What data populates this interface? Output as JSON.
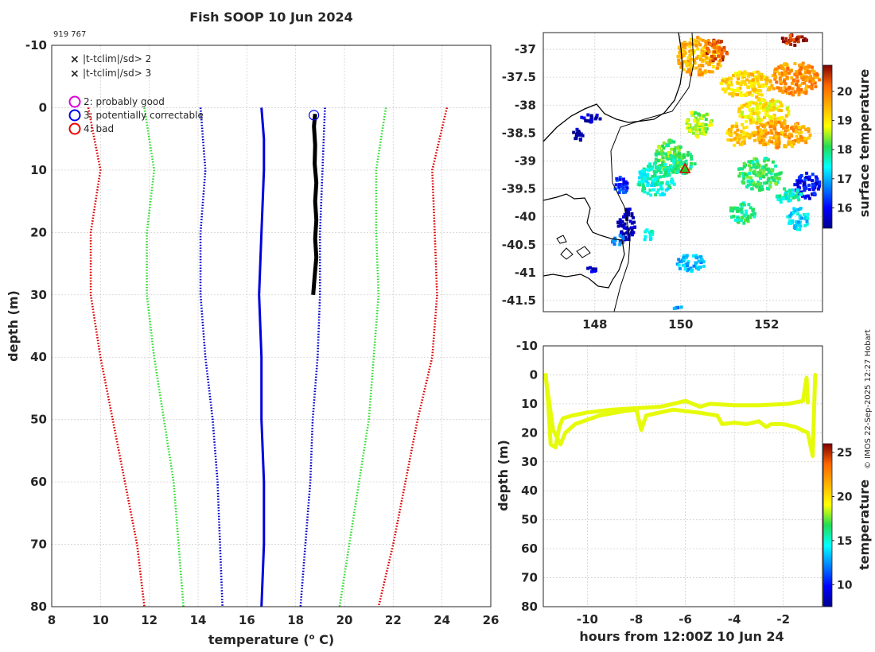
{
  "header": {
    "title": "Fish SOOP 10 Jun 2024",
    "cast_id": "919 767",
    "credit": "© IMOS 22-Sep-2025 12:27 Hobart"
  },
  "legend": {
    "cross_items": [
      {
        "label": "|t-tclim|/sd> 2",
        "color": "#22dd22"
      },
      {
        "label": "|t-tclim|/sd> 3",
        "color": "#dd0000"
      }
    ],
    "circle_items": [
      {
        "label": "2: probably good",
        "color": "#dd00dd"
      },
      {
        "label": "3: potentially correctable",
        "color": "#0000ee"
      },
      {
        "label": "4: bad",
        "color": "#ee0000"
      }
    ]
  },
  "chart_data": [
    {
      "type": "line",
      "name": "profile",
      "xlabel": "temperature (o C)",
      "ylabel": "depth (m)",
      "xlim": [
        8,
        26
      ],
      "ylim": [
        -10,
        80
      ],
      "x_ticks": [
        "8",
        "10",
        "12",
        "14",
        "16",
        "18",
        "20",
        "22",
        "24",
        "26"
      ],
      "y_ticks": [
        "-10",
        "0",
        "10",
        "20",
        "30",
        "40",
        "50",
        "60",
        "70",
        "80"
      ],
      "grid": true,
      "series": [
        {
          "name": "clim -3sd",
          "style": "dotted",
          "color": "#dd0000",
          "points": [
            [
              9.5,
              0
            ],
            [
              10.0,
              10
            ],
            [
              9.6,
              20
            ],
            [
              9.6,
              30
            ],
            [
              10.0,
              40
            ],
            [
              10.5,
              50
            ],
            [
              11.0,
              60
            ],
            [
              11.5,
              70
            ],
            [
              11.8,
              80
            ]
          ]
        },
        {
          "name": "clim -2sd",
          "style": "dotted",
          "color": "#33dd33",
          "points": [
            [
              11.8,
              0
            ],
            [
              12.2,
              10
            ],
            [
              11.9,
              20
            ],
            [
              11.9,
              30
            ],
            [
              12.2,
              40
            ],
            [
              12.6,
              50
            ],
            [
              13.0,
              60
            ],
            [
              13.2,
              70
            ],
            [
              13.4,
              80
            ]
          ]
        },
        {
          "name": "clim -1sd",
          "style": "dotted",
          "color": "#0000cc",
          "points": [
            [
              14.1,
              0
            ],
            [
              14.3,
              10
            ],
            [
              14.1,
              20
            ],
            [
              14.1,
              30
            ],
            [
              14.3,
              40
            ],
            [
              14.6,
              50
            ],
            [
              14.8,
              60
            ],
            [
              14.9,
              70
            ],
            [
              15.0,
              80
            ]
          ]
        },
        {
          "name": "clim mean",
          "style": "solid",
          "color": "#0000dd",
          "points": [
            [
              16.6,
              0
            ],
            [
              16.7,
              5
            ],
            [
              16.7,
              10
            ],
            [
              16.6,
              20
            ],
            [
              16.5,
              30
            ],
            [
              16.6,
              40
            ],
            [
              16.6,
              50
            ],
            [
              16.7,
              60
            ],
            [
              16.7,
              70
            ],
            [
              16.6,
              80
            ]
          ]
        },
        {
          "name": "clim +1sd",
          "style": "dotted",
          "color": "#0000cc",
          "points": [
            [
              19.2,
              0
            ],
            [
              19.1,
              10
            ],
            [
              19.0,
              20
            ],
            [
              19.0,
              30
            ],
            [
              18.9,
              40
            ],
            [
              18.7,
              50
            ],
            [
              18.6,
              60
            ],
            [
              18.4,
              70
            ],
            [
              18.2,
              80
            ]
          ]
        },
        {
          "name": "clim +2sd",
          "style": "dotted",
          "color": "#33dd33",
          "points": [
            [
              21.7,
              0
            ],
            [
              21.3,
              10
            ],
            [
              21.3,
              20
            ],
            [
              21.4,
              30
            ],
            [
              21.2,
              40
            ],
            [
              21.0,
              50
            ],
            [
              20.6,
              60
            ],
            [
              20.2,
              70
            ],
            [
              19.8,
              80
            ]
          ]
        },
        {
          "name": "clim +3sd",
          "style": "dotted",
          "color": "#dd0000",
          "points": [
            [
              24.2,
              0
            ],
            [
              23.6,
              10
            ],
            [
              23.7,
              20
            ],
            [
              23.8,
              30
            ],
            [
              23.6,
              40
            ],
            [
              23.0,
              50
            ],
            [
              22.5,
              60
            ],
            [
              22.0,
              70
            ],
            [
              21.4,
              80
            ]
          ]
        },
        {
          "name": "observed",
          "style": "bold",
          "color": "#000000",
          "points": [
            [
              18.8,
              1
            ],
            [
              18.75,
              3
            ],
            [
              18.8,
              6
            ],
            [
              18.78,
              9
            ],
            [
              18.85,
              12
            ],
            [
              18.8,
              15
            ],
            [
              18.85,
              18
            ],
            [
              18.8,
              21
            ],
            [
              18.85,
              24
            ],
            [
              18.78,
              27
            ],
            [
              18.72,
              30
            ]
          ]
        }
      ],
      "flag_marker": {
        "x": 18.75,
        "y": 1.2,
        "flag": "3: potentially correctable"
      }
    },
    {
      "type": "heatmap",
      "name": "sst map",
      "xlim": [
        146.8,
        153.3
      ],
      "ylim": [
        -41.7,
        -36.7
      ],
      "x_ticks": [
        "148",
        "150",
        "152"
      ],
      "y_ticks": [
        "-37",
        "-37.5",
        "-38",
        "-38.5",
        "-39",
        "-39.5",
        "-40",
        "-40.5",
        "-41",
        "-41.5"
      ],
      "colorbar_label": "surface temperature",
      "colorbar_ticks": [
        "16",
        "17",
        "18",
        "19",
        "20"
      ],
      "clim": [
        15.3,
        20.9
      ],
      "cast_location": {
        "lon": 150.1,
        "lat": -39.15
      },
      "patches": [
        {
          "lon": 150.4,
          "lat": -37.1,
          "temp": 19.5,
          "rx": 0.55,
          "ry": 0.35
        },
        {
          "lon": 150.8,
          "lat": -37.0,
          "temp": 20.3,
          "rx": 0.25,
          "ry": 0.2
        },
        {
          "lon": 152.6,
          "lat": -36.8,
          "temp": 20.6,
          "rx": 0.3,
          "ry": 0.1
        },
        {
          "lon": 151.5,
          "lat": -37.6,
          "temp": 19.2,
          "rx": 0.6,
          "ry": 0.25
        },
        {
          "lon": 152.6,
          "lat": -37.5,
          "temp": 19.8,
          "rx": 0.6,
          "ry": 0.3
        },
        {
          "lon": 151.9,
          "lat": -38.1,
          "temp": 19.0,
          "rx": 0.6,
          "ry": 0.25
        },
        {
          "lon": 151.3,
          "lat": -38.5,
          "temp": 19.3,
          "rx": 0.3,
          "ry": 0.2
        },
        {
          "lon": 152.3,
          "lat": -38.5,
          "temp": 19.6,
          "rx": 0.7,
          "ry": 0.25
        },
        {
          "lon": 150.4,
          "lat": -38.3,
          "temp": 18.5,
          "rx": 0.3,
          "ry": 0.25
        },
        {
          "lon": 149.7,
          "lat": -38.9,
          "temp": 18.2,
          "rx": 0.35,
          "ry": 0.3
        },
        {
          "lon": 149.4,
          "lat": -39.3,
          "temp": 17.6,
          "rx": 0.45,
          "ry": 0.3
        },
        {
          "lon": 150.0,
          "lat": -39.0,
          "temp": 18.0,
          "rx": 0.3,
          "ry": 0.2
        },
        {
          "lon": 151.8,
          "lat": -39.2,
          "temp": 18.0,
          "rx": 0.5,
          "ry": 0.3
        },
        {
          "lon": 152.9,
          "lat": -39.4,
          "temp": 16.0,
          "rx": 0.3,
          "ry": 0.25
        },
        {
          "lon": 152.5,
          "lat": -39.6,
          "temp": 17.6,
          "rx": 0.3,
          "ry": 0.15
        },
        {
          "lon": 151.4,
          "lat": -39.9,
          "temp": 17.9,
          "rx": 0.3,
          "ry": 0.2
        },
        {
          "lon": 152.7,
          "lat": -40.0,
          "temp": 17.2,
          "rx": 0.25,
          "ry": 0.2
        },
        {
          "lon": 148.6,
          "lat": -39.4,
          "temp": 16.2,
          "rx": 0.2,
          "ry": 0.15
        },
        {
          "lon": 148.7,
          "lat": -40.1,
          "temp": 15.5,
          "rx": 0.2,
          "ry": 0.3
        },
        {
          "lon": 148.5,
          "lat": -40.4,
          "temp": 16.5,
          "rx": 0.15,
          "ry": 0.1
        },
        {
          "lon": 149.2,
          "lat": -40.3,
          "temp": 17.5,
          "rx": 0.15,
          "ry": 0.1
        },
        {
          "lon": 150.2,
          "lat": -40.8,
          "temp": 17.0,
          "rx": 0.35,
          "ry": 0.15
        },
        {
          "lon": 147.9,
          "lat": -38.2,
          "temp": 15.6,
          "rx": 0.25,
          "ry": 0.08
        },
        {
          "lon": 147.6,
          "lat": -38.5,
          "temp": 15.4,
          "rx": 0.15,
          "ry": 0.1
        },
        {
          "lon": 147.9,
          "lat": -40.9,
          "temp": 15.6,
          "rx": 0.12,
          "ry": 0.06
        },
        {
          "lon": 149.9,
          "lat": -41.6,
          "temp": 16.8,
          "rx": 0.1,
          "ry": 0.03
        }
      ]
    },
    {
      "type": "scatter",
      "name": "depth-time track",
      "xlabel": "hours from 12:00Z 10 Jun 24",
      "ylabel": "depth (m)",
      "xlim": [
        -11.8,
        -0.4
      ],
      "ylim": [
        -10,
        80
      ],
      "x_ticks": [
        "-10",
        "-8",
        "-6",
        "-4",
        "-2"
      ],
      "y_ticks": [
        "-10",
        "0",
        "10",
        "20",
        "30",
        "40",
        "50",
        "60",
        "70",
        "80"
      ],
      "colorbar_label": "temperature",
      "colorbar_ticks": [
        "10",
        "15",
        "20",
        "25"
      ],
      "clim": [
        7.5,
        26
      ],
      "point_temp": 18.8,
      "track": [
        [
          -11.7,
          0
        ],
        [
          -11.6,
          10
        ],
        [
          -11.5,
          24
        ],
        [
          -11.3,
          25
        ],
        [
          -11.15,
          18
        ],
        [
          -11.0,
          15
        ],
        [
          -10.6,
          14
        ],
        [
          -10.0,
          13
        ],
        [
          -9.0,
          12
        ],
        [
          -8.0,
          11.5
        ],
        [
          -7.0,
          11
        ],
        [
          -6.5,
          10
        ],
        [
          -6.0,
          9
        ],
        [
          -5.4,
          11
        ],
        [
          -5.0,
          10
        ],
        [
          -4.0,
          10.5
        ],
        [
          -3.0,
          10.5
        ],
        [
          -1.8,
          10
        ],
        [
          -1.2,
          9
        ],
        [
          -1.05,
          1
        ],
        [
          -1.0,
          9.5
        ]
      ],
      "track2": [
        [
          -11.7,
          1
        ],
        [
          -11.4,
          19
        ],
        [
          -11.1,
          24
        ],
        [
          -10.9,
          20
        ],
        [
          -10.5,
          17
        ],
        [
          -9.5,
          14
        ],
        [
          -8.5,
          12.5
        ],
        [
          -8.0,
          12
        ],
        [
          -7.8,
          19
        ],
        [
          -7.6,
          14
        ],
        [
          -6.5,
          12
        ],
        [
          -5.5,
          13
        ],
        [
          -4.7,
          14
        ],
        [
          -4.5,
          17
        ],
        [
          -4.0,
          16.5
        ],
        [
          -3.5,
          17
        ],
        [
          -3.0,
          16
        ],
        [
          -2.7,
          18
        ],
        [
          -2.5,
          17
        ],
        [
          -2.0,
          17
        ],
        [
          -1.5,
          18
        ],
        [
          -1.0,
          20
        ],
        [
          -0.8,
          28
        ],
        [
          -0.75,
          14
        ],
        [
          -0.7,
          0
        ]
      ]
    }
  ]
}
